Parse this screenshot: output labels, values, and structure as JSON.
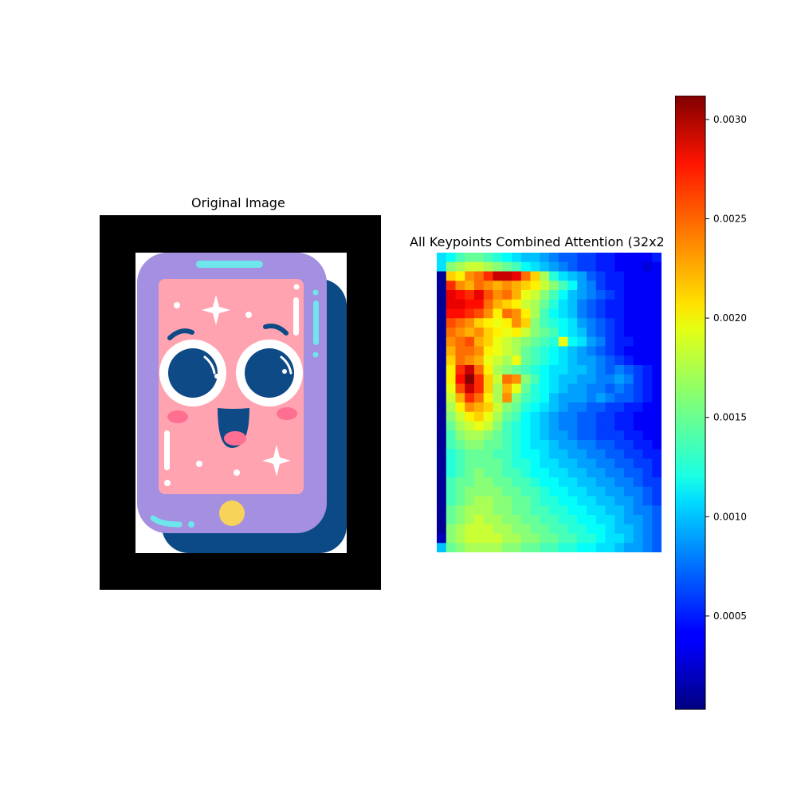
{
  "panels": {
    "original_title": "Original Image",
    "heatmap_title": "All Keypoints Combined Attention (32x2"
  },
  "illustration": {
    "subject": "smiling-phone-cartoon",
    "colors": {
      "frame": "#000000",
      "phone_body": "#a48fe0",
      "phone_shadow": "#0b4a86",
      "screen": "#ffa3b1",
      "eye_white": "#ffffff",
      "eye_pupil": "#0e4a86",
      "cheek": "#ff6f91",
      "accent_cyan": "#6fe5ec",
      "button": "#f7d35a"
    }
  },
  "chart_data": {
    "type": "heatmap",
    "title": "All Keypoints Combined Attention (32x2",
    "colormap": "jet",
    "vmin": 3e-05,
    "vmax": 0.00312,
    "rows": 32,
    "cols": 24,
    "grid": false,
    "colorbar": {
      "ticks": [
        0.0005,
        0.001,
        0.0015,
        0.002,
        0.0025,
        0.003
      ],
      "tick_labels": [
        "0.0005",
        "0.0010",
        "0.0015",
        "0.0020",
        "0.0025",
        "0.0030"
      ],
      "placement": "right"
    },
    "row_profiles": [
      [
        0.0011,
        0.0012,
        0.0014,
        0.0015,
        0.0015,
        0.0014,
        0.0013,
        0.0012,
        0.0011,
        0.001,
        0.001,
        0.0009,
        0.0008,
        0.0007,
        0.0007,
        0.0006,
        0.0006,
        0.0005,
        0.0005,
        0.0004,
        0.0004,
        0.0004,
        0.0004,
        0.0005
      ],
      [
        0.0011,
        0.0016,
        0.0017,
        0.0018,
        0.0018,
        0.0017,
        0.0016,
        0.0015,
        0.0014,
        0.0012,
        0.0011,
        0.001,
        0.0009,
        0.0008,
        0.0007,
        0.0006,
        0.0006,
        0.0005,
        0.0005,
        0.0004,
        0.0004,
        0.0004,
        0.0003,
        0.0004
      ],
      [
        0.0001,
        0.0021,
        0.002,
        0.0023,
        0.0024,
        0.0026,
        0.0029,
        0.0029,
        0.0028,
        0.0024,
        0.0021,
        0.0017,
        0.0013,
        0.0011,
        0.001,
        0.0009,
        0.0007,
        0.0006,
        0.0005,
        0.0005,
        0.0004,
        0.0004,
        0.0004,
        0.0004
      ],
      [
        0.0001,
        0.0026,
        0.0023,
        0.0022,
        0.0024,
        0.0023,
        0.0022,
        0.0023,
        0.0022,
        0.0021,
        0.002,
        0.0018,
        0.0016,
        0.0014,
        0.0012,
        0.0009,
        0.0008,
        0.0006,
        0.0005,
        0.0005,
        0.0004,
        0.0004,
        0.0004,
        0.0004
      ],
      [
        0.0001,
        0.0028,
        0.0027,
        0.0026,
        0.0028,
        0.0025,
        0.0023,
        0.0024,
        0.0022,
        0.0019,
        0.0018,
        0.0016,
        0.0014,
        0.0012,
        0.001,
        0.0009,
        0.0008,
        0.0007,
        0.0006,
        0.0005,
        0.0004,
        0.0004,
        0.0004,
        0.0004
      ],
      [
        0.0001,
        0.0028,
        0.0028,
        0.0027,
        0.0027,
        0.0024,
        0.0022,
        0.0021,
        0.002,
        0.0018,
        0.0017,
        0.0015,
        0.0013,
        0.0011,
        0.001,
        0.0008,
        0.0007,
        0.0006,
        0.0005,
        0.0005,
        0.0004,
        0.0004,
        0.0004,
        0.0004
      ],
      [
        0.0001,
        0.0027,
        0.0027,
        0.0026,
        0.0025,
        0.0023,
        0.002,
        0.0024,
        0.0023,
        0.002,
        0.0017,
        0.0014,
        0.0012,
        0.0011,
        0.001,
        0.0008,
        0.0007,
        0.0006,
        0.0005,
        0.0005,
        0.0004,
        0.0004,
        0.0004,
        0.0004
      ],
      [
        0.0001,
        0.0025,
        0.0024,
        0.0023,
        0.0021,
        0.002,
        0.0019,
        0.002,
        0.0023,
        0.0021,
        0.0016,
        0.0014,
        0.0013,
        0.0012,
        0.0011,
        0.0009,
        0.0008,
        0.0007,
        0.0006,
        0.0005,
        0.0004,
        0.0004,
        0.0004,
        0.0004
      ],
      [
        0.0001,
        0.0024,
        0.0023,
        0.0022,
        0.0023,
        0.0021,
        0.002,
        0.0019,
        0.002,
        0.0018,
        0.0016,
        0.0015,
        0.0014,
        0.0012,
        0.0011,
        0.001,
        0.0008,
        0.0007,
        0.0006,
        0.0005,
        0.0004,
        0.0004,
        0.0004,
        0.0004
      ],
      [
        0.0001,
        0.0023,
        0.0024,
        0.0025,
        0.0022,
        0.0021,
        0.0019,
        0.0018,
        0.0017,
        0.0016,
        0.0015,
        0.0014,
        0.0013,
        0.0019,
        0.0012,
        0.0011,
        0.0009,
        0.0008,
        0.0006,
        0.0005,
        0.0005,
        0.0004,
        0.0004,
        0.0004
      ],
      [
        0.0001,
        0.0022,
        0.0024,
        0.0024,
        0.0023,
        0.002,
        0.0019,
        0.0018,
        0.0017,
        0.0015,
        0.0014,
        0.0013,
        0.0012,
        0.0011,
        0.001,
        0.0009,
        0.0008,
        0.0007,
        0.0006,
        0.0005,
        0.0004,
        0.0004,
        0.0004,
        0.0004
      ],
      [
        0.0001,
        0.0021,
        0.0024,
        0.0023,
        0.0022,
        0.0019,
        0.0018,
        0.0017,
        0.0019,
        0.0015,
        0.0014,
        0.0013,
        0.0012,
        0.0011,
        0.001,
        0.0009,
        0.0009,
        0.0008,
        0.0007,
        0.0006,
        0.0005,
        0.0004,
        0.0004,
        0.0004
      ],
      [
        0.0001,
        0.002,
        0.0026,
        0.0029,
        0.0024,
        0.002,
        0.0017,
        0.0016,
        0.0015,
        0.0014,
        0.0013,
        0.0012,
        0.0011,
        0.0011,
        0.001,
        0.001,
        0.0009,
        0.0008,
        0.0007,
        0.0008,
        0.0007,
        0.0006,
        0.0005,
        0.0004
      ],
      [
        0.0001,
        0.002,
        0.0027,
        0.0031,
        0.0026,
        0.0021,
        0.0018,
        0.0024,
        0.0023,
        0.0016,
        0.0014,
        0.0012,
        0.0011,
        0.001,
        0.001,
        0.0009,
        0.0009,
        0.0008,
        0.0008,
        0.0009,
        0.0008,
        0.0006,
        0.0005,
        0.0004
      ],
      [
        0.0001,
        0.0019,
        0.0025,
        0.0029,
        0.0026,
        0.0021,
        0.0017,
        0.0022,
        0.0019,
        0.0015,
        0.0013,
        0.0012,
        0.0011,
        0.001,
        0.0009,
        0.0009,
        0.0008,
        0.0008,
        0.0007,
        0.0008,
        0.0007,
        0.0006,
        0.0005,
        0.0004
      ],
      [
        0.0001,
        0.0018,
        0.0022,
        0.0026,
        0.0024,
        0.002,
        0.0017,
        0.0023,
        0.0016,
        0.0014,
        0.0013,
        0.0012,
        0.001,
        0.0009,
        0.0009,
        0.0009,
        0.0008,
        0.0009,
        0.0008,
        0.0007,
        0.0007,
        0.0006,
        0.0005,
        0.0004
      ],
      [
        0.0001,
        0.0017,
        0.002,
        0.0023,
        0.0022,
        0.0021,
        0.0018,
        0.0016,
        0.0015,
        0.0013,
        0.0012,
        0.0011,
        0.001,
        0.0009,
        0.0008,
        0.0008,
        0.0007,
        0.0007,
        0.0006,
        0.0006,
        0.0005,
        0.0005,
        0.0004,
        0.0004
      ],
      [
        0.0001,
        0.0016,
        0.0018,
        0.002,
        0.0021,
        0.0019,
        0.0017,
        0.0015,
        0.0014,
        0.0012,
        0.0011,
        0.001,
        0.0009,
        0.0008,
        0.0008,
        0.0007,
        0.0007,
        0.0006,
        0.0006,
        0.0005,
        0.0005,
        0.0004,
        0.0004,
        0.0004
      ],
      [
        0.0001,
        0.0015,
        0.0017,
        0.0018,
        0.0019,
        0.0018,
        0.0016,
        0.0014,
        0.0013,
        0.0012,
        0.0011,
        0.001,
        0.0009,
        0.0008,
        0.0008,
        0.0007,
        0.0007,
        0.0006,
        0.0006,
        0.0005,
        0.0005,
        0.0004,
        0.0004,
        0.0004
      ],
      [
        0.0001,
        0.0014,
        0.0016,
        0.0017,
        0.0017,
        0.0016,
        0.0015,
        0.0014,
        0.0013,
        0.0012,
        0.0011,
        0.001,
        0.0009,
        0.0009,
        0.0008,
        0.0007,
        0.0007,
        0.0006,
        0.0006,
        0.0006,
        0.0005,
        0.0005,
        0.0004,
        0.0004
      ],
      [
        0.0001,
        0.0014,
        0.0015,
        0.0016,
        0.0016,
        0.0015,
        0.0015,
        0.0014,
        0.0013,
        0.0012,
        0.0011,
        0.0011,
        0.001,
        0.0009,
        0.0009,
        0.0008,
        0.0008,
        0.0007,
        0.0007,
        0.0006,
        0.0006,
        0.0005,
        0.0005,
        0.0004
      ],
      [
        0.0001,
        0.0013,
        0.0014,
        0.0015,
        0.0015,
        0.0015,
        0.0014,
        0.0014,
        0.0013,
        0.0012,
        0.0012,
        0.0011,
        0.001,
        0.001,
        0.0009,
        0.0009,
        0.0008,
        0.0008,
        0.0007,
        0.0007,
        0.0006,
        0.0006,
        0.0005,
        0.0005
      ],
      [
        0.0001,
        0.0013,
        0.0014,
        0.0015,
        0.0015,
        0.0015,
        0.0015,
        0.0014,
        0.0013,
        0.0013,
        0.0012,
        0.0011,
        0.0011,
        0.001,
        0.001,
        0.0009,
        0.0009,
        0.0008,
        0.0008,
        0.0007,
        0.0007,
        0.0006,
        0.0006,
        0.0005
      ],
      [
        0.0001,
        0.0013,
        0.0014,
        0.0015,
        0.0016,
        0.0015,
        0.0015,
        0.0014,
        0.0014,
        0.0013,
        0.0012,
        0.0012,
        0.0011,
        0.0011,
        0.001,
        0.001,
        0.0009,
        0.0009,
        0.0008,
        0.0008,
        0.0007,
        0.0007,
        0.0006,
        0.0005
      ],
      [
        0.0001,
        0.0014,
        0.0015,
        0.0015,
        0.0016,
        0.0016,
        0.0015,
        0.0015,
        0.0014,
        0.0014,
        0.0013,
        0.0012,
        0.0012,
        0.0011,
        0.0011,
        0.001,
        0.001,
        0.0009,
        0.0009,
        0.0008,
        0.0008,
        0.0007,
        0.0006,
        0.0006
      ],
      [
        0.0001,
        0.0014,
        0.0015,
        0.0016,
        0.0016,
        0.0016,
        0.0016,
        0.0015,
        0.0015,
        0.0014,
        0.0014,
        0.0013,
        0.0012,
        0.0012,
        0.0011,
        0.0011,
        0.001,
        0.001,
        0.0009,
        0.0009,
        0.0008,
        0.0008,
        0.0007,
        0.0006
      ],
      [
        0.0001,
        0.0014,
        0.0015,
        0.0016,
        0.0017,
        0.0017,
        0.0016,
        0.0016,
        0.0015,
        0.0015,
        0.0014,
        0.0013,
        0.0013,
        0.0012,
        0.0012,
        0.0011,
        0.0011,
        0.001,
        0.001,
        0.0009,
        0.0009,
        0.0008,
        0.0007,
        0.0006
      ],
      [
        0.0001,
        0.0015,
        0.0016,
        0.0017,
        0.0017,
        0.0017,
        0.0016,
        0.0016,
        0.0015,
        0.0015,
        0.0014,
        0.0014,
        0.0013,
        0.0013,
        0.0012,
        0.0012,
        0.0011,
        0.0011,
        0.001,
        0.001,
        0.0009,
        0.0008,
        0.0008,
        0.0007
      ],
      [
        0.0001,
        0.0015,
        0.0016,
        0.0017,
        0.0018,
        0.0017,
        0.0017,
        0.0016,
        0.0016,
        0.0015,
        0.0015,
        0.0014,
        0.0014,
        0.0013,
        0.0013,
        0.0012,
        0.0012,
        0.0011,
        0.0011,
        0.001,
        0.0009,
        0.0009,
        0.0008,
        0.0007
      ],
      [
        0.0001,
        0.0016,
        0.0017,
        0.0018,
        0.0018,
        0.0018,
        0.0017,
        0.0017,
        0.0016,
        0.0016,
        0.0015,
        0.0015,
        0.0014,
        0.0014,
        0.0013,
        0.0013,
        0.0012,
        0.0012,
        0.0011,
        0.001,
        0.001,
        0.0009,
        0.0008,
        0.0007
      ],
      [
        0.0002,
        0.0016,
        0.0017,
        0.0018,
        0.0018,
        0.0018,
        0.0018,
        0.0017,
        0.0017,
        0.0016,
        0.0016,
        0.0015,
        0.0015,
        0.0014,
        0.0014,
        0.0013,
        0.0013,
        0.0012,
        0.0011,
        0.0011,
        0.001,
        0.0009,
        0.0008,
        0.0007
      ],
      [
        0.001,
        0.0015,
        0.0016,
        0.0017,
        0.0017,
        0.0017,
        0.0017,
        0.0016,
        0.0016,
        0.0015,
        0.0015,
        0.0014,
        0.0014,
        0.0013,
        0.0013,
        0.0012,
        0.0012,
        0.0011,
        0.0011,
        0.001,
        0.0009,
        0.0009,
        0.0008,
        0.0007
      ]
    ]
  }
}
